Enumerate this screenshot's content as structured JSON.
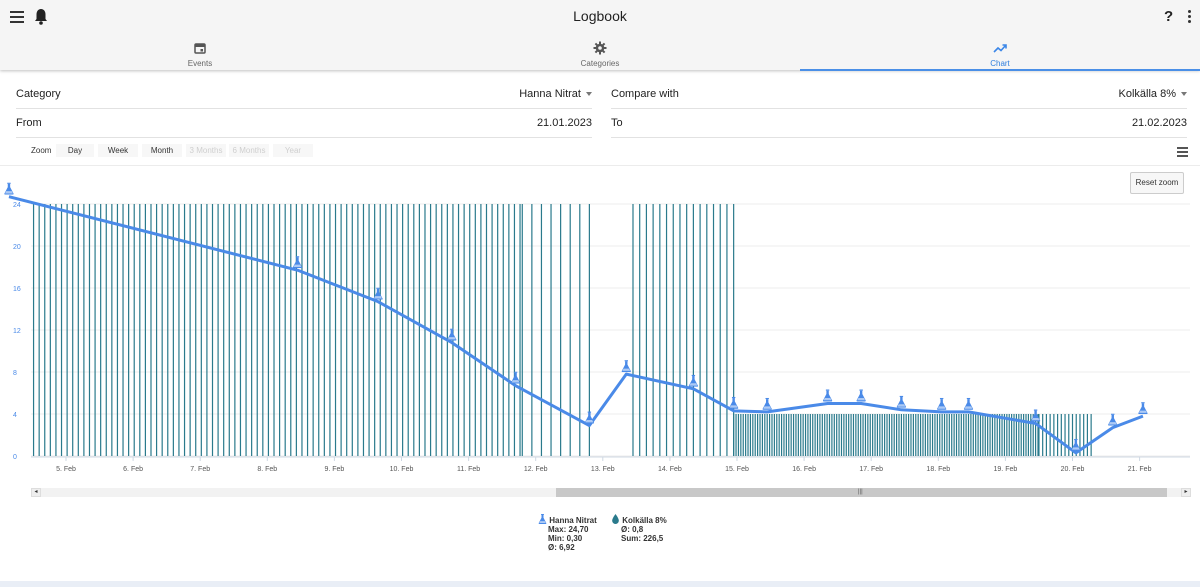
{
  "app": {
    "title": "Logbook"
  },
  "header": {
    "help_label": "?"
  },
  "tabs": [
    {
      "label": "Events",
      "icon": "calendar-icon"
    },
    {
      "label": "Categories",
      "icon": "gear-icon"
    },
    {
      "label": "Chart",
      "icon": "trending-up-icon",
      "active": true
    }
  ],
  "form": {
    "category_label": "Category",
    "category_value": "Hanna Nitrat",
    "compare_label": "Compare with",
    "compare_value": "Kolkälla 8%",
    "from_label": "From",
    "from_value": "21.01.2023",
    "to_label": "To",
    "to_value": "21.02.2023"
  },
  "zoom": {
    "label": "Zoom",
    "options": [
      {
        "label": "Day",
        "enabled": true
      },
      {
        "label": "Week",
        "enabled": true
      },
      {
        "label": "Month",
        "enabled": true
      },
      {
        "label": "3 Months",
        "enabled": false
      },
      {
        "label": "6 Months",
        "enabled": false
      },
      {
        "label": "Year",
        "enabled": false
      }
    ]
  },
  "reset_zoom_label": "Reset zoom",
  "chart_data": {
    "type": "line",
    "x_ticks": [
      "5. Feb",
      "6. Feb",
      "7. Feb",
      "8. Feb",
      "9. Feb",
      "10. Feb",
      "11. Feb",
      "12. Feb",
      "13. Feb",
      "14. Feb",
      "15. Feb",
      "16. Feb",
      "17. Feb",
      "18. Feb",
      "19. Feb",
      "20. Feb",
      "21. Feb"
    ],
    "y_ticks": [
      0,
      4,
      8,
      12,
      16,
      20,
      24
    ],
    "ylim": [
      0,
      25
    ],
    "grid": true,
    "series": [
      {
        "name": "Hanna Nitrat",
        "color": "#4a8ae8",
        "marker": "flask-icon",
        "points": [
          {
            "x": 4.15,
            "y": 24.7
          },
          {
            "x": 8.45,
            "y": 17.7
          },
          {
            "x": 9.65,
            "y": 14.7
          },
          {
            "x": 10.75,
            "y": 10.8
          },
          {
            "x": 11.7,
            "y": 6.7
          },
          {
            "x": 12.8,
            "y": 2.9
          },
          {
            "x": 13.35,
            "y": 7.8
          },
          {
            "x": 14.35,
            "y": 6.4
          },
          {
            "x": 14.95,
            "y": 4.3
          },
          {
            "x": 15.45,
            "y": 4.2
          },
          {
            "x": 16.35,
            "y": 5.0
          },
          {
            "x": 16.85,
            "y": 5.0
          },
          {
            "x": 17.45,
            "y": 4.4
          },
          {
            "x": 18.05,
            "y": 4.2
          },
          {
            "x": 18.45,
            "y": 4.2
          },
          {
            "x": 19.45,
            "y": 3.1
          },
          {
            "x": 20.05,
            "y": 0.3
          },
          {
            "x": 20.6,
            "y": 2.7
          },
          {
            "x": 21.05,
            "y": 3.8
          }
        ]
      },
      {
        "name": "Kolkälla 8%",
        "color": "#2a7a8c",
        "marker": "drop-icon",
        "type": "column",
        "segments": [
          {
            "from": 4.1,
            "to": 11.8,
            "value": 24,
            "per_day": 12
          },
          {
            "from": 11.8,
            "to": 12.8,
            "value": 24,
            "per_day": 7
          },
          {
            "from": 13.45,
            "to": 14.95,
            "value": 24,
            "per_day": 10
          },
          {
            "from": 14.95,
            "to": 19.5,
            "value": 4,
            "per_day": 28
          },
          {
            "from": 19.5,
            "to": 20.3,
            "value": 4,
            "per_day": 18
          }
        ]
      }
    ]
  },
  "legend": [
    {
      "name": "Hanna Nitrat",
      "icon": "flask-icon",
      "stats": [
        "Max: 24,70",
        "Min: 0,30",
        "Ø: 6,92"
      ]
    },
    {
      "name": "Kolkälla 8%",
      "icon": "drop-icon",
      "stats": [
        "Ø: 0,8",
        "Sum: 226,5"
      ]
    }
  ]
}
